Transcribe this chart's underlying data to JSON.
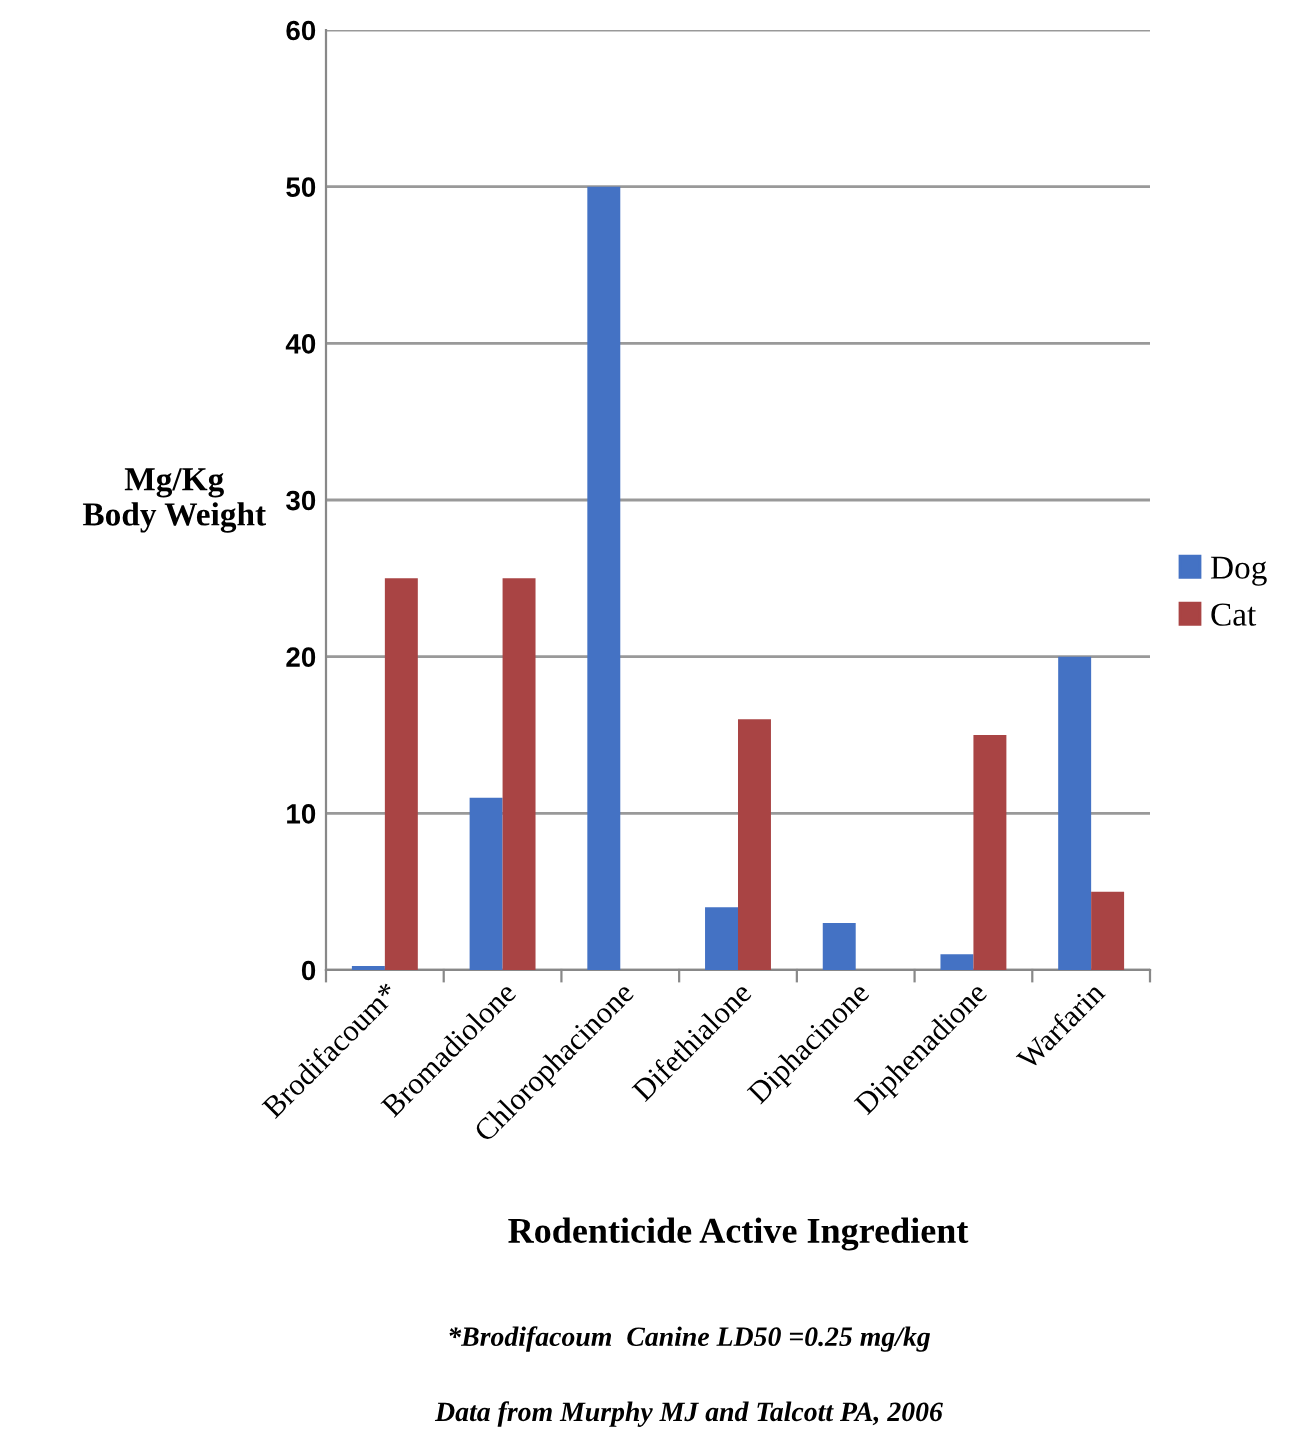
{
  "chart_data": {
    "type": "bar",
    "ylabel": "Mg/Kg\nBody Weight",
    "xlabel": "Rodenticide Active Ingredient",
    "categories": [
      "Brodifacoum*",
      "Bromadiolone",
      "Chlorophacinone",
      "Difethialone",
      "Diphacinone",
      "Diphenadione",
      "Warfarin"
    ],
    "series": [
      {
        "name": "Dog",
        "color": "#4472c4",
        "values": [
          0.25,
          11,
          50,
          4,
          3,
          1,
          20
        ]
      },
      {
        "name": "Cat",
        "color": "#a94444",
        "values": [
          25,
          25,
          null,
          16,
          null,
          15,
          5
        ]
      }
    ],
    "ylim": [
      0,
      60
    ],
    "yticks": [
      0,
      10,
      20,
      30,
      40,
      50,
      60
    ],
    "grid": "y",
    "legend": "right",
    "annotations": [
      "*Brodifacoum  Canine LD50 =0.25 mg/kg",
      "Data from Murphy MJ and Talcott PA, 2006"
    ]
  }
}
